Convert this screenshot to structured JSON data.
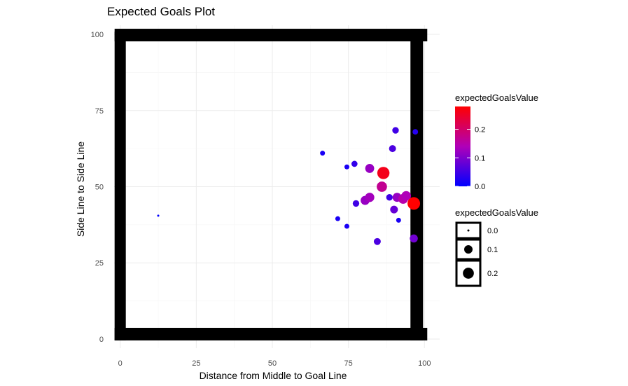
{
  "chart_data": {
    "type": "scatter",
    "title": "Expected Goals Plot",
    "xlabel": "Distance from Middle to Goal Line",
    "ylabel": "Side Line to Side Line",
    "xlim": [
      -2,
      105
    ],
    "ylim": [
      -3,
      103
    ],
    "x_ticks": [
      0,
      25,
      50,
      75,
      100
    ],
    "y_ticks": [
      0,
      25,
      50,
      75,
      100
    ],
    "grid": true,
    "legend_position": "right",
    "color_legend": {
      "title": "expectedGoalsValue",
      "min": 0.0,
      "max": 0.28,
      "low_color": "#0000ff",
      "high_color": "#ff0000",
      "ticks": [
        {
          "value": 0.0,
          "label": "0.0"
        },
        {
          "value": 0.1,
          "label": "0.1"
        },
        {
          "value": 0.2,
          "label": "0.2"
        }
      ]
    },
    "size_legend": {
      "title": "expectedGoalsValue",
      "entries": [
        {
          "value": 0.0,
          "label": "0.0"
        },
        {
          "value": 0.1,
          "label": "0.1"
        },
        {
          "value": 0.2,
          "label": "0.2"
        }
      ]
    },
    "pitch_outline": {
      "color": "#000000",
      "x_range": [
        0,
        100
      ],
      "y_range": [
        0,
        100
      ]
    },
    "points": [
      {
        "x": 12.5,
        "y": 40.5,
        "value": 0.0
      },
      {
        "x": 66.5,
        "y": 61.0,
        "value": 0.02
      },
      {
        "x": 71.5,
        "y": 39.5,
        "value": 0.02
      },
      {
        "x": 74.5,
        "y": 56.5,
        "value": 0.02
      },
      {
        "x": 74.5,
        "y": 37.0,
        "value": 0.02
      },
      {
        "x": 77.0,
        "y": 57.5,
        "value": 0.04
      },
      {
        "x": 77.5,
        "y": 44.5,
        "value": 0.05
      },
      {
        "x": 80.5,
        "y": 45.5,
        "value": 0.12
      },
      {
        "x": 82.0,
        "y": 56.0,
        "value": 0.12
      },
      {
        "x": 82.0,
        "y": 46.5,
        "value": 0.13
      },
      {
        "x": 84.5,
        "y": 32.0,
        "value": 0.06
      },
      {
        "x": 86.0,
        "y": 50.0,
        "value": 0.17
      },
      {
        "x": 86.5,
        "y": 54.5,
        "value": 0.26
      },
      {
        "x": 88.5,
        "y": 46.5,
        "value": 0.05
      },
      {
        "x": 89.5,
        "y": 62.5,
        "value": 0.06
      },
      {
        "x": 90.0,
        "y": 42.5,
        "value": 0.08
      },
      {
        "x": 90.5,
        "y": 68.5,
        "value": 0.05
      },
      {
        "x": 91.0,
        "y": 46.5,
        "value": 0.12
      },
      {
        "x": 91.5,
        "y": 39.0,
        "value": 0.02
      },
      {
        "x": 93.0,
        "y": 46.0,
        "value": 0.15
      },
      {
        "x": 94.0,
        "y": 47.0,
        "value": 0.14
      },
      {
        "x": 96.5,
        "y": 44.5,
        "value": 0.28
      },
      {
        "x": 96.5,
        "y": 33.0,
        "value": 0.09
      },
      {
        "x": 97.0,
        "y": 68.0,
        "value": 0.03
      }
    ]
  }
}
